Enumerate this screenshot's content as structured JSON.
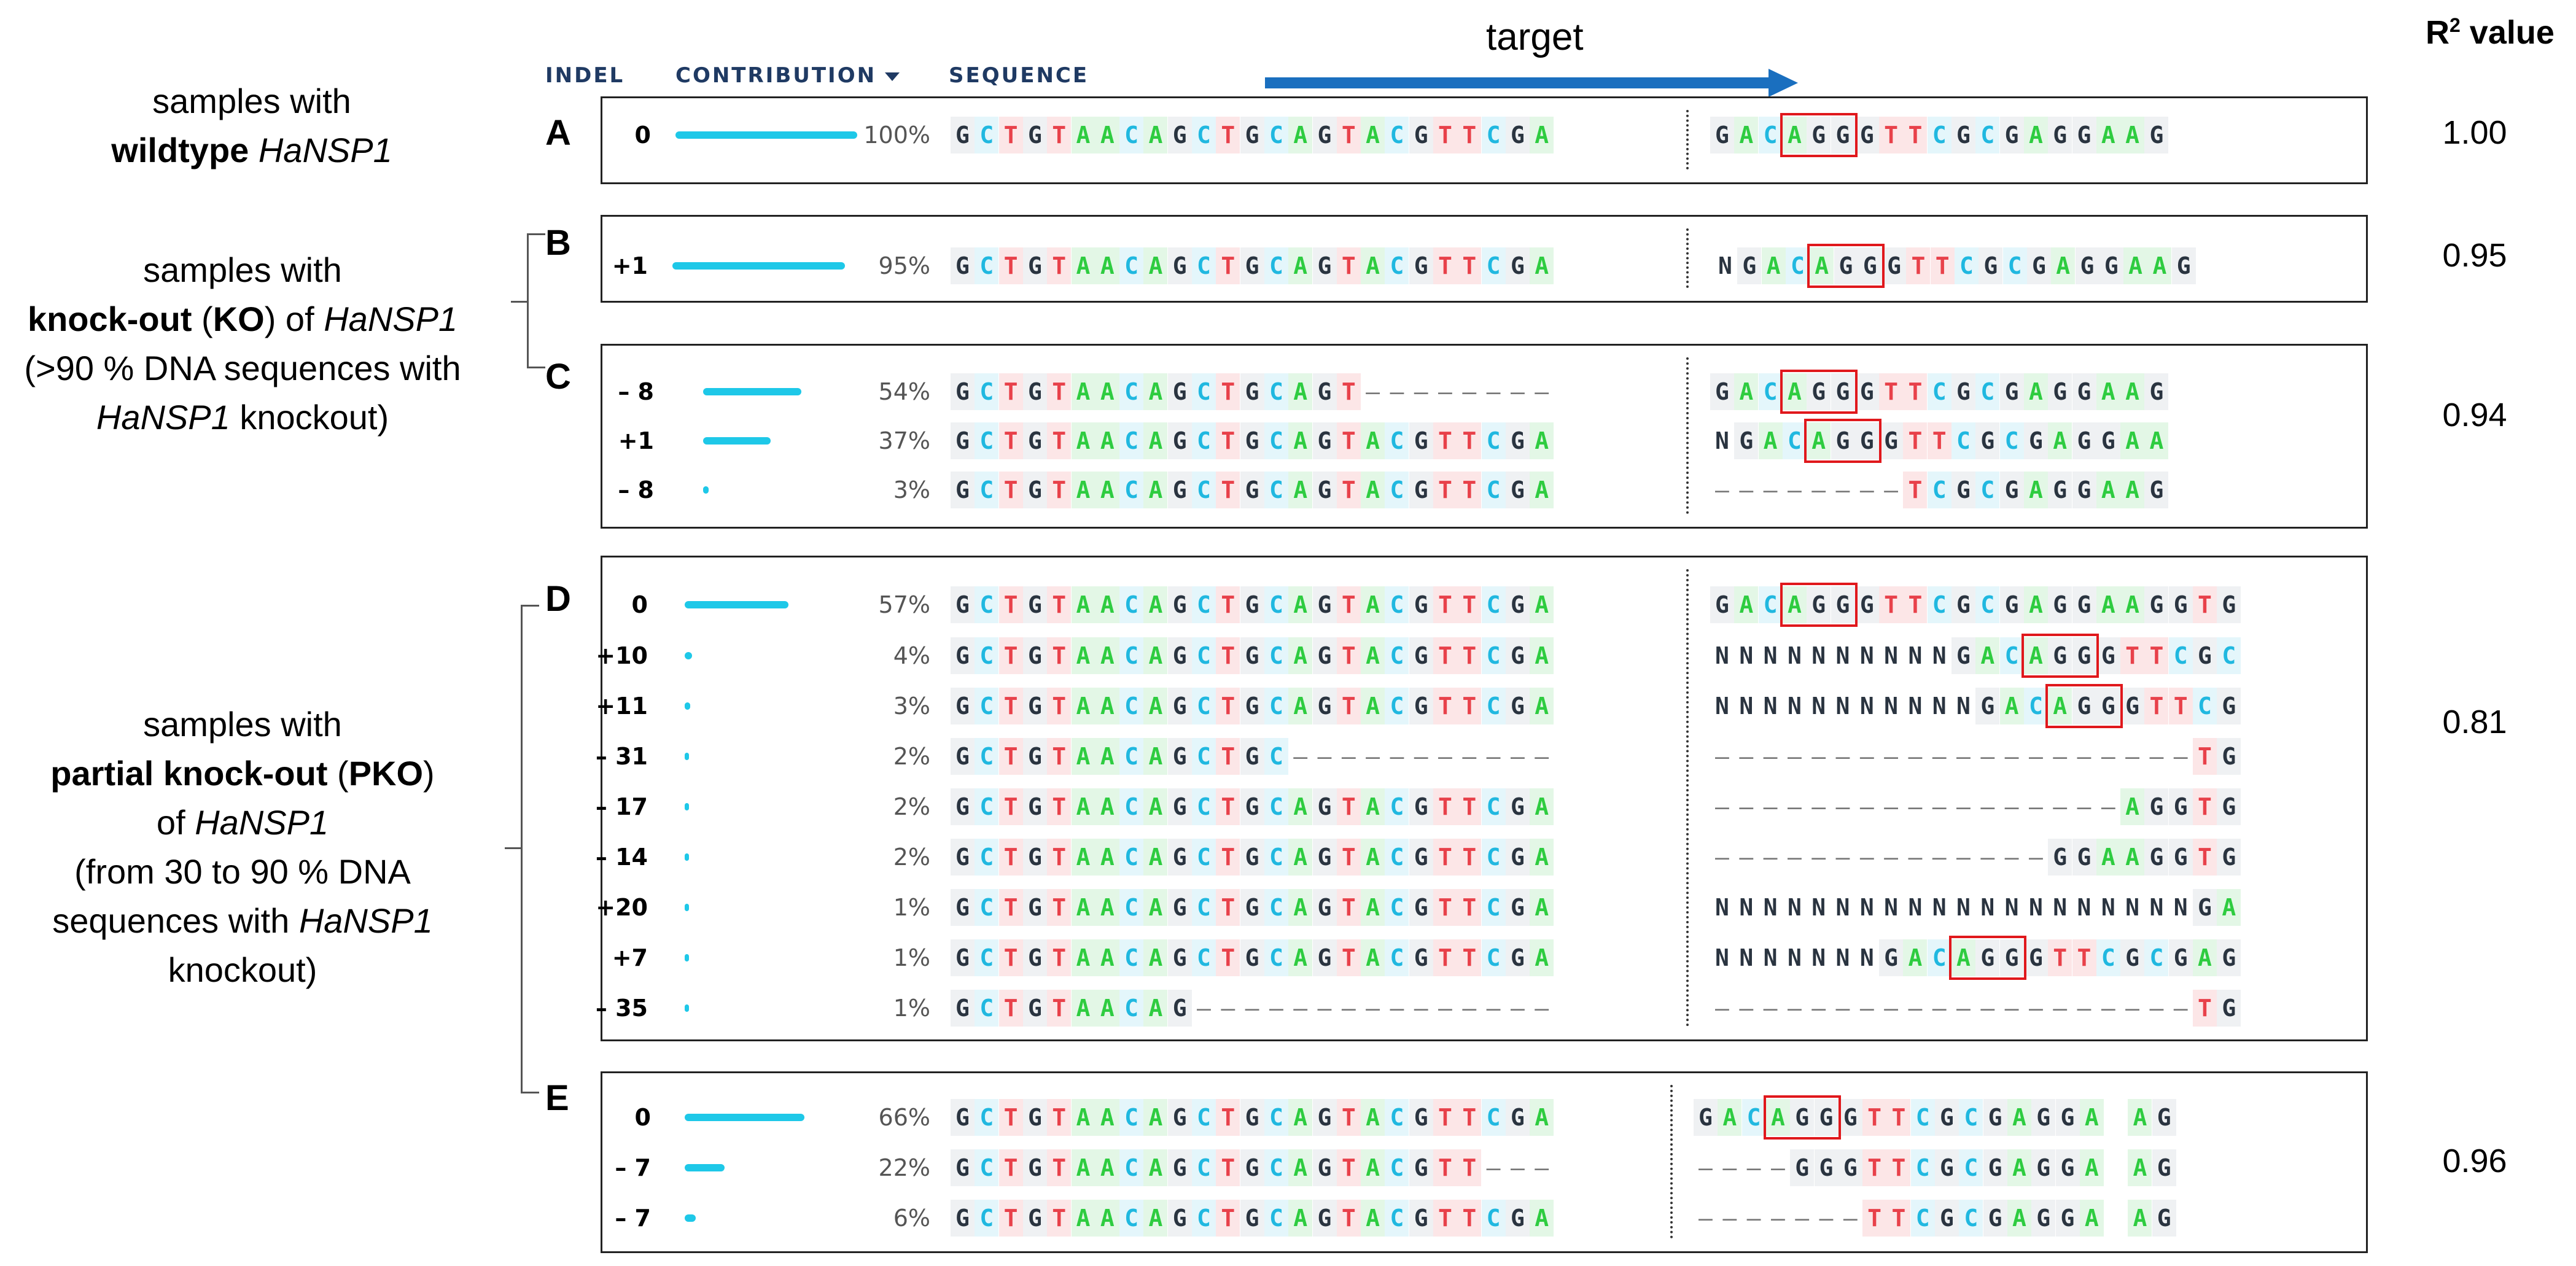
{
  "headers": {
    "indel": "INDEL",
    "contribution": "CONTRIBUTION",
    "sequence": "SEQUENCE",
    "target": "target",
    "r2": "R",
    "r2_sup": "2",
    "r2_suffix": " value"
  },
  "groups": [
    {
      "lines": [
        "samples with",
        "<b>wildtype</b> <i>HaNSP1</i>"
      ]
    },
    {
      "lines": [
        "samples with",
        "<b>knock-out</b> (<b>KO</b>) of <i>HaNSP1</i>",
        "(>90 % DNA sequences with",
        "<i>HaNSP1</i> knockout)"
      ]
    },
    {
      "lines": [
        "samples with",
        "<b>partial knock-out</b> (<b>PKO</b>)",
        "of <i>HaNSP1</i>",
        "(from 30 to 90 % DNA",
        "sequences with <i>HaNSP1</i>",
        "knockout)"
      ]
    }
  ],
  "panels": [
    {
      "letter": "A",
      "r2": "1.00",
      "rows": [
        {
          "indel": "0",
          "pct": "100%",
          "left": "GCTGTAACAGCTGCAGTACGTTCGA",
          "right": "GACAGGGTTCGCGAGGAAG",
          "contribution": 1.0
        }
      ]
    },
    {
      "letter": "B",
      "r2": "0.95",
      "rows": [
        {
          "indel": "+1",
          "pct": "95%",
          "left": "GCTGTAACAGCTGCAGTACGTTCGA",
          "right": "NGACAGGGTTCGCGAGGAAG",
          "contribution": 0.95
        }
      ]
    },
    {
      "letter": "C",
      "r2": "0.94",
      "rows": [
        {
          "indel": "– 8",
          "pct": "54%",
          "left": "GCTGTAACAGCTGCAGT--------",
          "right": "GACAGGGTTCGCGAGGAAG",
          "contribution": 0.54
        },
        {
          "indel": "+1",
          "pct": "37%",
          "left": "GCTGTAACAGCTGCAGTACGTTCGA",
          "right": "NGACAGGGTTCGCGAGGAA",
          "contribution": 0.37
        },
        {
          "indel": "– 8",
          "pct": "3%",
          "left": "GCTGTAACAGCTGCAGTACGTTCGA",
          "right": "--------TCGCGAGGAAG",
          "contribution": 0.03
        }
      ]
    },
    {
      "letter": "D",
      "r2": "0.81",
      "rows": [
        {
          "indel": "0",
          "pct": "57%",
          "left": "GCTGTAACAGCTGCAGTACGTTCGA",
          "right": "GACAGGGTTCGCGAGGAAGGTG",
          "contribution": 0.57
        },
        {
          "indel": "+10",
          "pct": "4%",
          "left": "GCTGTAACAGCTGCAGTACGTTCGA",
          "right": "NNNNNNNNNNGACAGGGTTCGC",
          "contribution": 0.04
        },
        {
          "indel": "+11",
          "pct": "3%",
          "left": "GCTGTAACAGCTGCAGTACGTTCGA",
          "right": "NNNNNNNNNNNGACAGGGTTCG",
          "contribution": 0.03
        },
        {
          "indel": "– 31",
          "pct": "2%",
          "left": "GCTGTAACAGCTGC-----------",
          "right": "--------------------TG",
          "contribution": 0.02
        },
        {
          "indel": "– 17",
          "pct": "2%",
          "left": "GCTGTAACAGCTGCAGTACGTTCGA",
          "right": "-----------------AGGTG",
          "contribution": 0.02
        },
        {
          "indel": "– 14",
          "pct": "2%",
          "left": "GCTGTAACAGCTGCAGTACGTTCGA",
          "right": "--------------GGAAGGTG",
          "contribution": 0.02
        },
        {
          "indel": "+20",
          "pct": "1%",
          "left": "GCTGTAACAGCTGCAGTACGTTCGA",
          "right": "NNNNNNNNNNNNNNNNNNNNGA",
          "contribution": 0.01
        },
        {
          "indel": "+7",
          "pct": "1%",
          "left": "GCTGTAACAGCTGCAGTACGTTCGA",
          "right": "NNNNNNNGACAGGGTTCGCGAG",
          "contribution": 0.01
        },
        {
          "indel": "– 35",
          "pct": "1%",
          "left": "GCTGTAACAG---------------",
          "right": "--------------------TG",
          "contribution": 0.01
        }
      ]
    },
    {
      "letter": "E",
      "r2": "0.96",
      "rows": [
        {
          "indel": "0",
          "pct": "66%",
          "left": "GCTGTAACAGCTGCAGTACGTTCGA",
          "right": "GACAGGGTTCGCGAGGA AG",
          "contribution": 0.66
        },
        {
          "indel": "– 7",
          "pct": "22%",
          "left": "GCTGTAACAGCTGCAGTACGTT---",
          "right": "----GGGTTCGCGAGGA AG",
          "contribution": 0.22
        },
        {
          "indel": "– 7",
          "pct": "6%",
          "left": "GCTGTAACAGCTGCAGTACGTTCGA",
          "right": "-------TTCGCGAGGA AG",
          "contribution": 0.06
        }
      ]
    }
  ],
  "colors": {
    "A": "#2ecc40",
    "C": "#20b8e0",
    "G": "#2a3440",
    "T": "#e8414a",
    "bar": "#1ec8e8",
    "pam_box": "#e0181c",
    "arrow": "#1a6fbf"
  }
}
